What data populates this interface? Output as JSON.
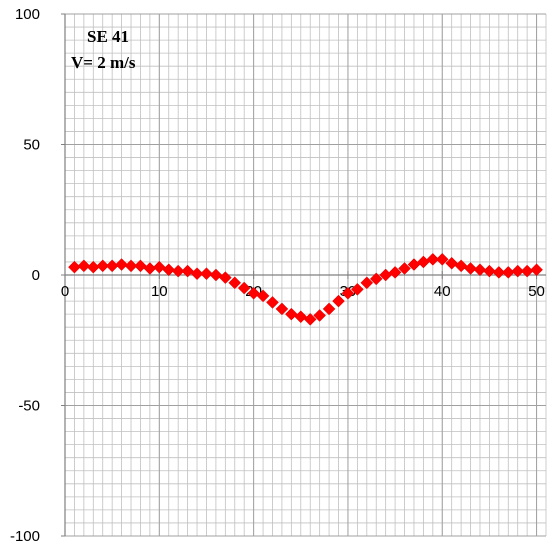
{
  "chart_data": {
    "type": "scatter",
    "title": [
      "SE 41",
      "V= 2 m/s"
    ],
    "xlabel": "",
    "ylabel": "",
    "xlim": [
      0,
      51
    ],
    "ylim": [
      -100,
      100
    ],
    "x_ticks": [
      10,
      20,
      30,
      40,
      50
    ],
    "x_tick_labels": [
      "10",
      "20",
      "30",
      "40",
      "50"
    ],
    "y_ticks": [
      100,
      50,
      0,
      -50,
      -100
    ],
    "y_tick_labels": [
      "100",
      "50",
      "0",
      "-50",
      "-100"
    ],
    "grid": true,
    "marker": "diamond",
    "colors": {
      "marker": "#ff0000",
      "grid": "#c0c0c0",
      "axis": "#808080"
    },
    "series": [
      {
        "x": [
          1,
          2,
          3,
          4,
          5,
          6,
          7,
          8,
          9,
          10,
          11,
          12,
          13,
          14,
          15,
          16,
          17,
          18,
          19,
          20,
          21,
          22,
          23,
          24,
          25,
          26,
          27,
          28,
          29,
          30,
          31,
          32,
          33,
          34,
          35,
          36,
          37,
          38,
          39,
          40,
          41,
          42,
          43,
          44,
          45,
          46,
          47,
          48,
          49,
          50
        ],
        "y": [
          3,
          3.5,
          3,
          3.5,
          3.5,
          4,
          3.5,
          3.5,
          2.5,
          3,
          2,
          1.5,
          1.5,
          0.5,
          0.5,
          0,
          -1,
          -3,
          -5,
          -7,
          -8,
          -10.5,
          -13,
          -15,
          -16,
          -17,
          -15.5,
          -13,
          -10,
          -7,
          -5.5,
          -3,
          -1.5,
          0,
          1,
          2.5,
          4,
          5,
          6,
          6,
          4.5,
          3.5,
          2.5,
          2,
          1.5,
          1,
          1,
          1.5,
          1.5,
          2
        ]
      }
    ]
  }
}
